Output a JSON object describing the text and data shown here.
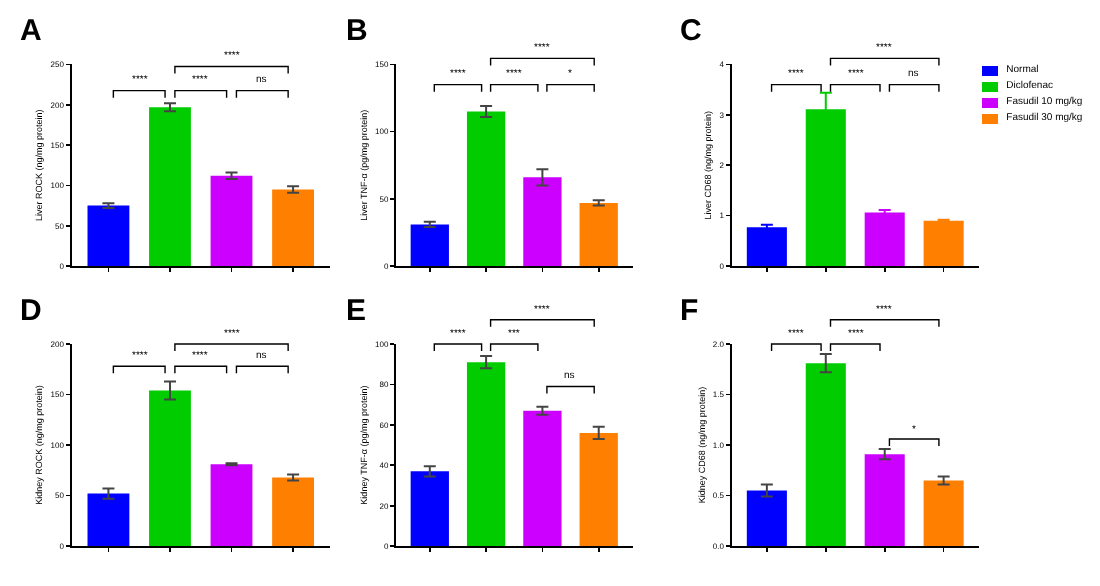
{
  "chart_data": [
    {
      "type": "bar",
      "title": "A",
      "ylabel": "Liver ROCK (ng/mg protein)",
      "categories": [
        null,
        null,
        null,
        null
      ],
      "values": [
        75,
        197,
        112,
        95
      ],
      "errors": [
        3,
        5,
        4,
        4
      ],
      "colors": [
        "#0000ff",
        "#00cc00",
        "#cc00ff",
        "#ff8000"
      ],
      "ylim": [
        0,
        250
      ],
      "yticks": [
        0,
        50,
        100,
        150,
        200,
        250
      ],
      "tick_labels": "y",
      "annotations": [
        "****",
        "****",
        "ns",
        "****"
      ]
    },
    {
      "type": "bar",
      "title": "B",
      "ylabel": "Liver TNF-α (pg/mg protein)",
      "categories": [
        null,
        null,
        null,
        null
      ],
      "values": [
        31,
        115,
        66,
        47
      ],
      "errors": [
        2,
        4,
        6,
        2
      ],
      "colors": [
        "#0000ff",
        "#00cc00",
        "#cc00ff",
        "#ff8000"
      ],
      "ylim": [
        0,
        150
      ],
      "yticks": [
        0,
        50,
        100,
        150
      ],
      "tick_labels": "y",
      "annotations": [
        "****",
        "****",
        "*",
        "****"
      ]
    },
    {
      "type": "bar",
      "title": "C",
      "ylabel": "Liver CD68 (ng/mg protein)",
      "categories": [
        null,
        null,
        null,
        null
      ],
      "series": [
        {
          "name": "Normal",
          "color": "#0000ff",
          "values": [
            0.77,
            null,
            null,
            null
          ],
          "errors": [
            0.05,
            null,
            null,
            null
          ]
        },
        {
          "name": "Diclofenac",
          "color": "#00cc00",
          "values": [
            null,
            3.11,
            null,
            null
          ],
          "errors": [
            null,
            0.33,
            null,
            null
          ]
        },
        {
          "name": "Fasudil 10 mg/kg",
          "color": "#cc00ff",
          "values": [
            null,
            null,
            1.06,
            null
          ],
          "errors": [
            null,
            null,
            0.05,
            null
          ]
        },
        {
          "name": "Fasudil 30 mg/kg",
          "color": "#ff8000",
          "values": [
            null,
            null,
            null,
            0.9
          ],
          "errors": [
            null,
            null,
            null,
            0.02
          ]
        }
      ],
      "ylim": [
        0,
        4
      ],
      "yticks": [
        0,
        1,
        2,
        3,
        4
      ],
      "tick_labels": "y",
      "legend": "right",
      "annotations": [
        "****",
        "****",
        "ns",
        "****"
      ]
    },
    {
      "type": "bar",
      "title": "D",
      "ylabel": "Kidney ROCK (ng/mg protein)",
      "categories": [
        null,
        null,
        null,
        null
      ],
      "values": [
        52,
        154,
        81,
        68
      ],
      "errors": [
        5,
        9,
        1,
        3
      ],
      "colors": [
        "#0000ff",
        "#00cc00",
        "#cc00ff",
        "#ff8000"
      ],
      "ylim": [
        0,
        200
      ],
      "yticks": [
        0,
        50,
        100,
        150,
        200
      ],
      "tick_labels": "y",
      "annotations": [
        "****",
        "****",
        "ns",
        "****"
      ]
    },
    {
      "type": "bar",
      "title": "E",
      "ylabel": "Kidney TNF-α (pg/mg protein)",
      "categories": [
        null,
        null,
        null,
        null
      ],
      "values": [
        37,
        91,
        67,
        56
      ],
      "errors": [
        2.5,
        3,
        2,
        3
      ],
      "colors": [
        "#0000ff",
        "#00cc00",
        "#cc00ff",
        "#ff8000"
      ],
      "ylim": [
        0,
        100
      ],
      "yticks": [
        0,
        20,
        40,
        60,
        80,
        100
      ],
      "tick_labels": "y",
      "annotations": [
        "****",
        "***",
        "ns",
        "****"
      ]
    },
    {
      "type": "bar",
      "title": "F",
      "ylabel": "Kidney CD68 (ng/mg protein)",
      "categories": [
        null,
        null,
        null,
        null
      ],
      "values": [
        0.55,
        1.81,
        0.91,
        0.65
      ],
      "errors": [
        0.06,
        0.09,
        0.05,
        0.04
      ],
      "colors": [
        "#0000ff",
        "#00cc00",
        "#cc00ff",
        "#ff8000"
      ],
      "ylim": [
        0,
        2
      ],
      "yticks": [
        {
          "value": 0,
          "label": "0.0"
        },
        {
          "value": 0.5,
          "label": "0.5"
        },
        {
          "value": 1,
          "label": "1.0"
        },
        {
          "value": 1.5,
          "label": "1.5"
        },
        {
          "value": 2,
          "label": "2.0"
        }
      ],
      "tick_labels": "y",
      "annotations": [
        "****",
        "****",
        "*",
        "****"
      ]
    }
  ]
}
